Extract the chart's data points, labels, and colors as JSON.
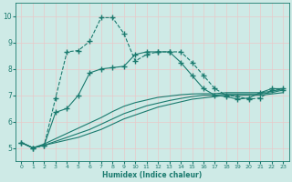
{
  "xlabel": "Humidex (Indice chaleur)",
  "ylabel": "",
  "xlim": [
    -0.5,
    23.5
  ],
  "ylim": [
    4.5,
    10.5
  ],
  "yticks": [
    5,
    6,
    7,
    8,
    9,
    10
  ],
  "xticks": [
    0,
    1,
    2,
    3,
    4,
    5,
    6,
    7,
    8,
    9,
    10,
    11,
    12,
    13,
    14,
    15,
    16,
    17,
    18,
    19,
    20,
    21,
    22,
    23
  ],
  "bg_color": "#ceeae6",
  "grid_color": "#e8c8c8",
  "line_color": "#1a7a6e",
  "lines": [
    {
      "x": [
        0,
        1,
        2,
        3,
        4,
        5,
        6,
        7,
        8,
        9,
        10,
        11,
        12,
        13,
        14,
        15,
        16,
        17,
        18,
        19,
        20,
        21,
        22,
        23
      ],
      "y": [
        5.2,
        5.0,
        5.1,
        6.9,
        8.65,
        8.7,
        9.05,
        9.95,
        9.95,
        9.35,
        8.3,
        8.55,
        8.65,
        8.65,
        8.65,
        8.25,
        7.75,
        7.25,
        7.0,
        6.95,
        6.85,
        6.9,
        7.2,
        7.2
      ],
      "marker": "+",
      "markersize": 4,
      "linewidth": 0.8,
      "linestyle": "--"
    },
    {
      "x": [
        0,
        1,
        2,
        3,
        4,
        5,
        6,
        7,
        8,
        9,
        10,
        11,
        12,
        13,
        14,
        15,
        16,
        17,
        18,
        19,
        20,
        21,
        22,
        23
      ],
      "y": [
        5.2,
        5.0,
        5.1,
        6.35,
        6.5,
        7.0,
        7.85,
        8.0,
        8.05,
        8.1,
        8.55,
        8.65,
        8.65,
        8.65,
        8.25,
        7.75,
        7.25,
        7.0,
        6.95,
        6.85,
        6.9,
        7.1,
        7.25,
        7.25
      ],
      "marker": "+",
      "markersize": 4,
      "linewidth": 0.8,
      "linestyle": "-"
    },
    {
      "x": [
        0,
        1,
        2,
        3,
        4,
        5,
        6,
        7,
        8,
        9,
        10,
        11,
        12,
        13,
        14,
        15,
        16,
        17,
        18,
        19,
        20,
        21,
        22,
        23
      ],
      "y": [
        5.2,
        5.0,
        5.1,
        5.2,
        5.3,
        5.4,
        5.55,
        5.7,
        5.9,
        6.1,
        6.25,
        6.4,
        6.55,
        6.65,
        6.75,
        6.85,
        6.9,
        6.95,
        7.0,
        7.0,
        7.0,
        7.0,
        7.05,
        7.1
      ],
      "marker": null,
      "markersize": 0,
      "linewidth": 0.8,
      "linestyle": "-"
    },
    {
      "x": [
        0,
        1,
        2,
        3,
        4,
        5,
        6,
        7,
        8,
        9,
        10,
        11,
        12,
        13,
        14,
        15,
        16,
        17,
        18,
        19,
        20,
        21,
        22,
        23
      ],
      "y": [
        5.2,
        5.0,
        5.1,
        5.25,
        5.4,
        5.55,
        5.7,
        5.9,
        6.1,
        6.3,
        6.45,
        6.6,
        6.7,
        6.8,
        6.88,
        6.95,
        7.0,
        7.0,
        7.05,
        7.05,
        7.05,
        7.05,
        7.1,
        7.2
      ],
      "marker": null,
      "markersize": 0,
      "linewidth": 0.8,
      "linestyle": "-"
    },
    {
      "x": [
        0,
        1,
        2,
        3,
        4,
        5,
        6,
        7,
        8,
        9,
        10,
        11,
        12,
        13,
        14,
        15,
        16,
        17,
        18,
        19,
        20,
        21,
        22,
        23
      ],
      "y": [
        5.2,
        5.0,
        5.15,
        5.35,
        5.55,
        5.75,
        5.95,
        6.15,
        6.38,
        6.58,
        6.72,
        6.82,
        6.92,
        6.97,
        7.02,
        7.05,
        7.06,
        7.06,
        7.1,
        7.1,
        7.1,
        7.1,
        7.15,
        7.25
      ],
      "marker": null,
      "markersize": 0,
      "linewidth": 0.8,
      "linestyle": "-"
    }
  ]
}
